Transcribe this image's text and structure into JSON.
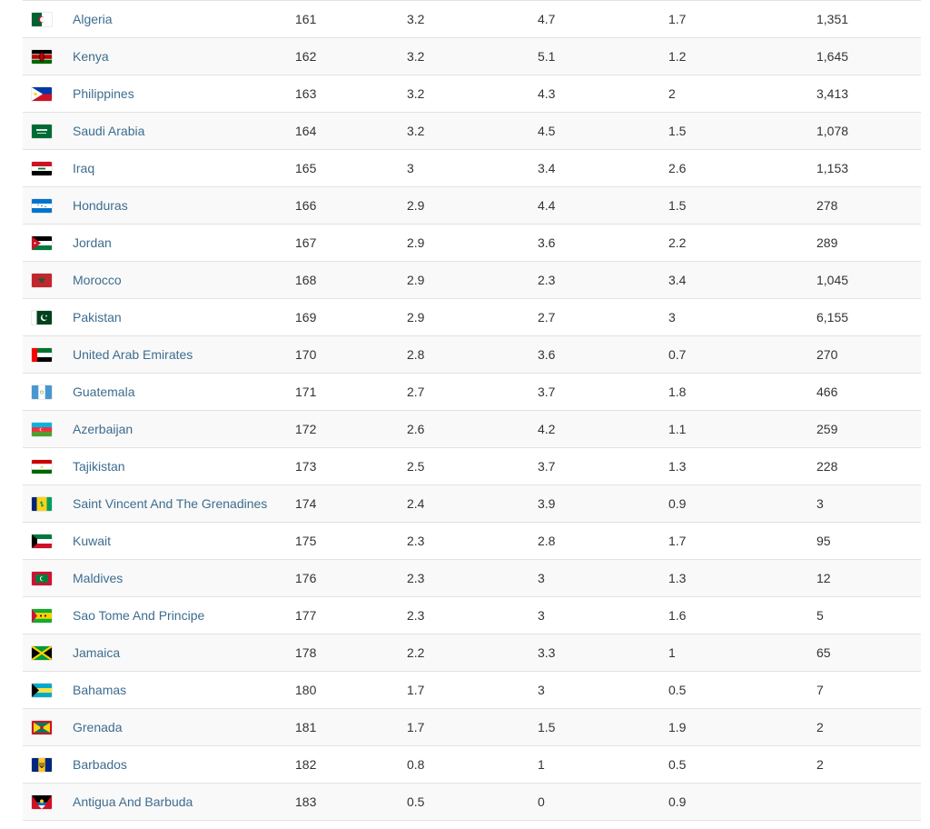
{
  "rows": [
    {
      "flag": "algeria-flag-icon",
      "name": "Algeria",
      "rank": "161",
      "v1": "3.2",
      "v2": "4.7",
      "v3": "1.7",
      "v4": "1,351"
    },
    {
      "flag": "kenya-flag-icon",
      "name": "Kenya",
      "rank": "162",
      "v1": "3.2",
      "v2": "5.1",
      "v3": "1.2",
      "v4": "1,645"
    },
    {
      "flag": "philippines-flag-icon",
      "name": "Philippines",
      "rank": "163",
      "v1": "3.2",
      "v2": "4.3",
      "v3": "2",
      "v4": "3,413"
    },
    {
      "flag": "saudi-arabia-flag-icon",
      "name": "Saudi Arabia",
      "rank": "164",
      "v1": "3.2",
      "v2": "4.5",
      "v3": "1.5",
      "v4": "1,078"
    },
    {
      "flag": "iraq-flag-icon",
      "name": "Iraq",
      "rank": "165",
      "v1": "3",
      "v2": "3.4",
      "v3": "2.6",
      "v4": "1,153"
    },
    {
      "flag": "honduras-flag-icon",
      "name": "Honduras",
      "rank": "166",
      "v1": "2.9",
      "v2": "4.4",
      "v3": "1.5",
      "v4": "278"
    },
    {
      "flag": "jordan-flag-icon",
      "name": "Jordan",
      "rank": "167",
      "v1": "2.9",
      "v2": "3.6",
      "v3": "2.2",
      "v4": "289"
    },
    {
      "flag": "morocco-flag-icon",
      "name": "Morocco",
      "rank": "168",
      "v1": "2.9",
      "v2": "2.3",
      "v3": "3.4",
      "v4": "1,045"
    },
    {
      "flag": "pakistan-flag-icon",
      "name": "Pakistan",
      "rank": "169",
      "v1": "2.9",
      "v2": "2.7",
      "v3": "3",
      "v4": "6,155"
    },
    {
      "flag": "uae-flag-icon",
      "name": "United Arab Emirates",
      "rank": "170",
      "v1": "2.8",
      "v2": "3.6",
      "v3": "0.7",
      "v4": "270"
    },
    {
      "flag": "guatemala-flag-icon",
      "name": "Guatemala",
      "rank": "171",
      "v1": "2.7",
      "v2": "3.7",
      "v3": "1.8",
      "v4": "466"
    },
    {
      "flag": "azerbaijan-flag-icon",
      "name": "Azerbaijan",
      "rank": "172",
      "v1": "2.6",
      "v2": "4.2",
      "v3": "1.1",
      "v4": "259"
    },
    {
      "flag": "tajikistan-flag-icon",
      "name": "Tajikistan",
      "rank": "173",
      "v1": "2.5",
      "v2": "3.7",
      "v3": "1.3",
      "v4": "228"
    },
    {
      "flag": "saint-vincent-flag-icon",
      "name": "Saint Vincent And The Grenadines",
      "rank": "174",
      "v1": "2.4",
      "v2": "3.9",
      "v3": "0.9",
      "v4": "3"
    },
    {
      "flag": "kuwait-flag-icon",
      "name": "Kuwait",
      "rank": "175",
      "v1": "2.3",
      "v2": "2.8",
      "v3": "1.7",
      "v4": "95"
    },
    {
      "flag": "maldives-flag-icon",
      "name": "Maldives",
      "rank": "176",
      "v1": "2.3",
      "v2": "3",
      "v3": "1.3",
      "v4": "12"
    },
    {
      "flag": "sao-tome-flag-icon",
      "name": "Sao Tome And Principe",
      "rank": "177",
      "v1": "2.3",
      "v2": "3",
      "v3": "1.6",
      "v4": "5"
    },
    {
      "flag": "jamaica-flag-icon",
      "name": "Jamaica",
      "rank": "178",
      "v1": "2.2",
      "v2": "3.3",
      "v3": "1",
      "v4": "65"
    },
    {
      "flag": "bahamas-flag-icon",
      "name": "Bahamas",
      "rank": "180",
      "v1": "1.7",
      "v2": "3",
      "v3": "0.5",
      "v4": "7"
    },
    {
      "flag": "grenada-flag-icon",
      "name": "Grenada",
      "rank": "181",
      "v1": "1.7",
      "v2": "1.5",
      "v3": "1.9",
      "v4": "2"
    },
    {
      "flag": "barbados-flag-icon",
      "name": "Barbados",
      "rank": "182",
      "v1": "0.8",
      "v2": "1",
      "v3": "0.5",
      "v4": "2"
    },
    {
      "flag": "antigua-barbuda-flag-icon",
      "name": "Antigua And Barbuda",
      "rank": "183",
      "v1": "0.5",
      "v2": "0",
      "v3": "0.9",
      "v4": ""
    }
  ],
  "colors": {
    "link": "#3d6d8f",
    "text": "#333333",
    "row_alt": "#f9f9f9",
    "border": "#e2e2e2"
  }
}
